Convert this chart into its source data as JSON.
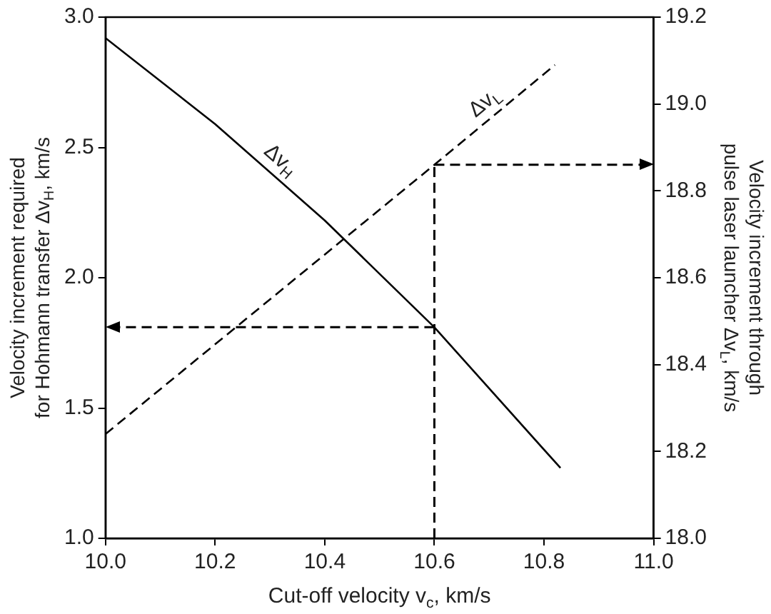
{
  "chart_data": {
    "type": "line",
    "xlabel": "Cut-off velocity v$_{c}$, km/s",
    "ylabel": "Velocity increment required\nfor Hohmann transfer Δv$_{H}$, km/s",
    "y2label": "Velocity increment through\npulse laser launcher Δv$_{L}$, km/s",
    "xlim": [
      10.0,
      11.0
    ],
    "xticks": [
      {
        "value": 10,
        "label": "10.0"
      },
      10.2,
      10.4,
      10.6,
      10.8,
      {
        "value": 11,
        "label": "11.0"
      }
    ],
    "ylim": [
      1.0,
      3.0
    ],
    "yticks": [
      {
        "value": 1,
        "label": "1.0"
      },
      1.5,
      {
        "value": 2,
        "label": "2.0"
      },
      2.5,
      {
        "value": 3,
        "label": "3.0"
      }
    ],
    "y2lim": [
      18.0,
      19.2
    ],
    "y2ticks": [
      {
        "value": 18,
        "label": "18.0"
      },
      18.2,
      18.4,
      18.6,
      18.8,
      {
        "value": 19,
        "label": "19.0"
      },
      19.2
    ],
    "grid": false,
    "legend": false,
    "marker": "none",
    "series": [
      {
        "color": "#000000",
        "line_style": "solid",
        "x": [
          10.0,
          10.2,
          10.4,
          10.6,
          10.83
        ],
        "values": [
          2.92,
          2.59,
          2.22,
          1.81,
          1.27
        ]
      },
      {
        "color": "#000000",
        "line_style": "dashed",
        "axis": "y2",
        "x": [
          10.0,
          10.6,
          10.82
        ],
        "values": [
          18.24,
          18.86,
          19.09
        ]
      }
    ],
    "ref_lines": [
      {
        "axis": "x",
        "value": 10.6,
        "color": "#000000",
        "line_style": "dashed"
      },
      {
        "axis": "y",
        "value": 1.81,
        "color": "#000000",
        "line_style": "dashed"
      },
      {
        "axis": "y2",
        "value": 18.86,
        "color": "#000000",
        "line_style": "dashed"
      }
    ],
    "annotations": [
      "Δv$_{H}$",
      "Δv$_{L}$"
    ]
  }
}
